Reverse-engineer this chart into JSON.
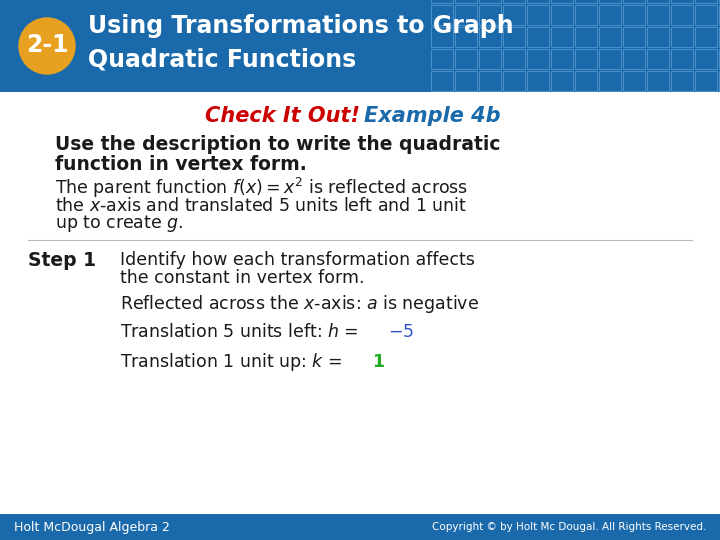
{
  "title_line1": "Using Transformations to Graph",
  "title_line2": "Quadratic Functions",
  "badge_text": "2-1",
  "header_bg_color": "#1a6aab",
  "badge_bg_color": "#e8a020",
  "badge_text_color": "#ffffff",
  "title_text_color": "#ffffff",
  "body_bg_color": "#ffffff",
  "subtitle_red": "#cc0000",
  "subtitle_blue": "#1a6aab",
  "subtitle_text": "Check It Out!",
  "subtitle_text2": "Example 4b",
  "bold_black": "#1a1a1a",
  "body_black": "#1a1a1a",
  "highlight_blue": "#3355cc",
  "highlight_green": "#22aa22",
  "footer_bg_color": "#1a6aab",
  "footer_text_color": "#ffffff",
  "footer_left": "Holt McDougal Algebra 2",
  "footer_right": "Copyright © by Holt Mc Dougal. All Rights Reserved."
}
